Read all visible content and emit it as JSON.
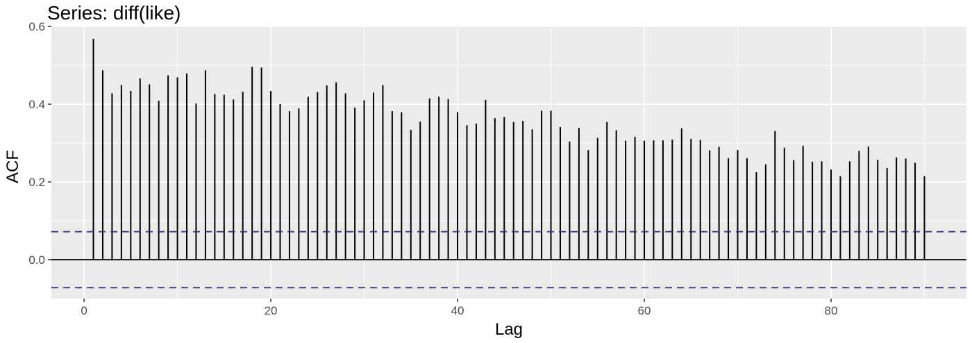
{
  "chart_data": {
    "type": "bar",
    "title": "Series: diff(like)",
    "xlabel": "Lag",
    "ylabel": "ACF",
    "xlim": [
      -3.5,
      94.5
    ],
    "ylim": [
      -0.1,
      0.6
    ],
    "x_ticks": [
      0,
      20,
      40,
      60,
      80
    ],
    "x_tick_labels": [
      "0",
      "20",
      "40",
      "60",
      "80"
    ],
    "y_ticks": [
      0.0,
      0.2,
      0.4,
      0.6
    ],
    "y_tick_labels": [
      "0.0",
      "0.2",
      "0.4",
      "0.6"
    ],
    "grid": true,
    "confidence_bound": 0.072,
    "colors": {
      "panel": "#ebebeb",
      "grid": "#ffffff",
      "bar": "#000000",
      "bound": "#2e3a87"
    },
    "lags": [
      1,
      2,
      3,
      4,
      5,
      6,
      7,
      8,
      9,
      10,
      11,
      12,
      13,
      14,
      15,
      16,
      17,
      18,
      19,
      20,
      21,
      22,
      23,
      24,
      25,
      26,
      27,
      28,
      29,
      30,
      31,
      32,
      33,
      34,
      35,
      36,
      37,
      38,
      39,
      40,
      41,
      42,
      43,
      44,
      45,
      46,
      47,
      48,
      49,
      50,
      51,
      52,
      53,
      54,
      55,
      56,
      57,
      58,
      59,
      60,
      61,
      62,
      63,
      64,
      65,
      66,
      67,
      68,
      69,
      70,
      71,
      72,
      73,
      74,
      75,
      76,
      77,
      78,
      79,
      80,
      81,
      82,
      83,
      84,
      85,
      86,
      87,
      88,
      89,
      90
    ],
    "acf": [
      0.568,
      0.487,
      0.428,
      0.449,
      0.434,
      0.466,
      0.451,
      0.409,
      0.474,
      0.469,
      0.479,
      0.402,
      0.487,
      0.426,
      0.424,
      0.412,
      0.432,
      0.496,
      0.494,
      0.434,
      0.4,
      0.382,
      0.389,
      0.419,
      0.431,
      0.448,
      0.456,
      0.428,
      0.391,
      0.41,
      0.43,
      0.449,
      0.382,
      0.379,
      0.334,
      0.355,
      0.415,
      0.419,
      0.413,
      0.379,
      0.346,
      0.35,
      0.411,
      0.364,
      0.367,
      0.354,
      0.357,
      0.335,
      0.383,
      0.383,
      0.341,
      0.304,
      0.339,
      0.282,
      0.313,
      0.354,
      0.333,
      0.306,
      0.316,
      0.306,
      0.307,
      0.307,
      0.309,
      0.338,
      0.311,
      0.308,
      0.281,
      0.29,
      0.261,
      0.282,
      0.261,
      0.225,
      0.245,
      0.331,
      0.288,
      0.256,
      0.293,
      0.252,
      0.253,
      0.232,
      0.215,
      0.253,
      0.28,
      0.291,
      0.257,
      0.236,
      0.263,
      0.26,
      0.249,
      0.215
    ]
  }
}
